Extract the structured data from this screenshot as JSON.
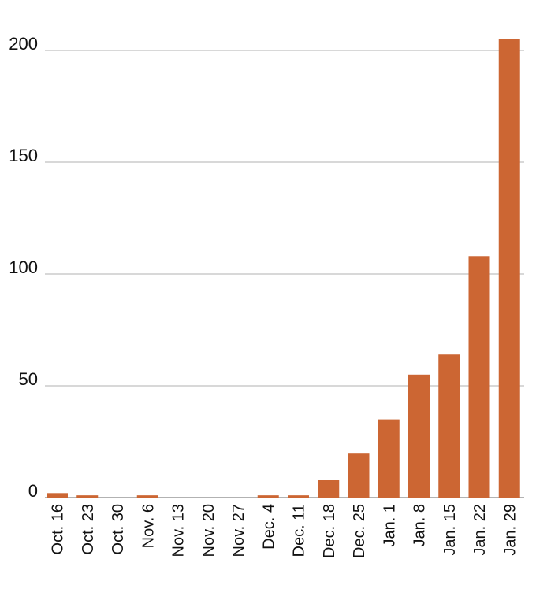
{
  "chart_data": {
    "type": "bar",
    "categories": [
      "Oct. 16",
      "Oct. 23",
      "Oct. 30",
      "Nov. 6",
      "Nov. 13",
      "Nov. 20",
      "Nov. 27",
      "Dec. 4",
      "Dec. 11",
      "Dec. 18",
      "Dec. 25",
      "Jan. 1",
      "Jan. 8",
      "Jan. 15",
      "Jan. 22",
      "Jan. 29"
    ],
    "values": [
      2,
      1,
      0,
      1,
      0,
      0,
      0,
      1,
      1,
      8,
      20,
      35,
      55,
      64,
      108,
      205
    ],
    "yticks": [
      0,
      50,
      100,
      150,
      200
    ],
    "ylim": [
      0,
      200
    ],
    "grid": true,
    "colors": {
      "bar": "#cc6633",
      "grid": "#cccccc",
      "text": "#111111"
    }
  }
}
